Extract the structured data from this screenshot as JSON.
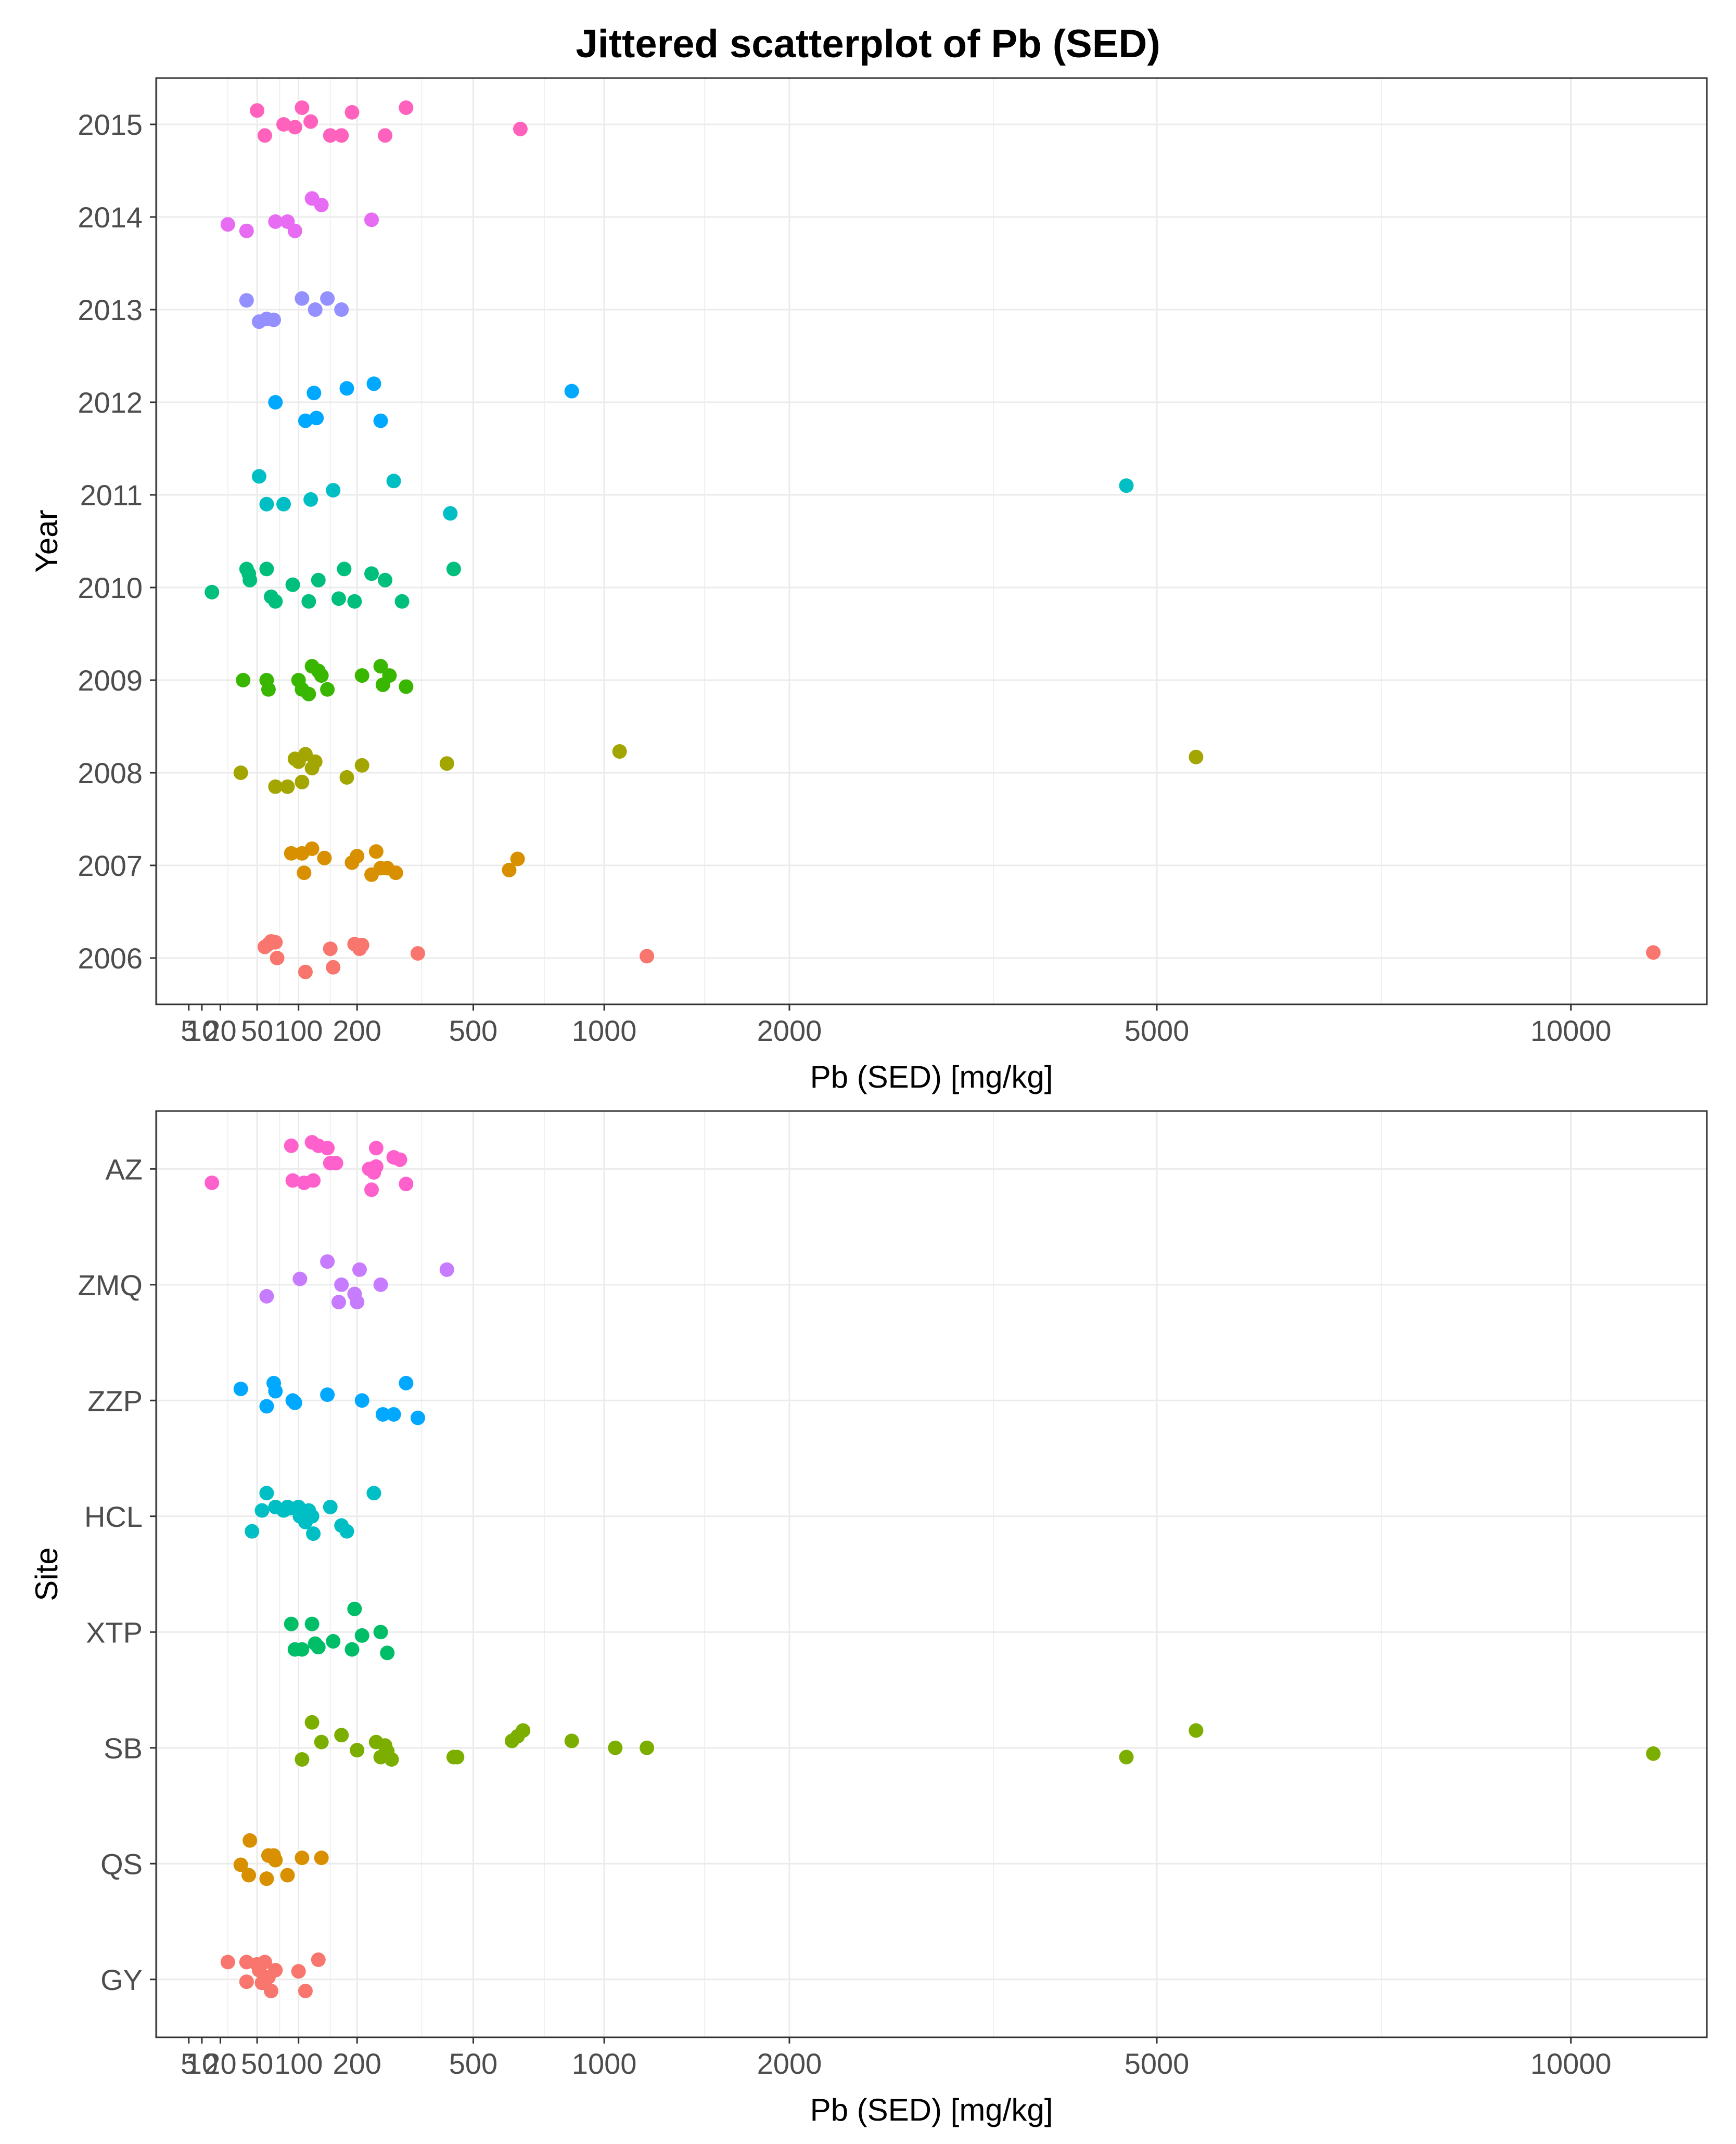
{
  "figure": {
    "title": "Jittered scatterplot of Pb (SED)"
  },
  "chart_data": [
    {
      "type": "scatter",
      "title": "Jittered scatterplot of Pb (SED)",
      "xlabel": "Pb (SED) [mg/kg]",
      "ylabel": "Year",
      "x_scale": "sqrt",
      "xlim": [
        0,
        12000
      ],
      "x_ticks": [
        5,
        10,
        20,
        50,
        100,
        200,
        500,
        1000,
        2000,
        5000,
        10000
      ],
      "x_tick_labels": [
        "5",
        "10",
        "20",
        "50",
        "100",
        "200",
        "500",
        "1000",
        "2000",
        "5000",
        "10000"
      ],
      "x_major_gridlines": [
        0,
        50,
        100,
        200,
        500,
        1000,
        2000,
        5000,
        10000
      ],
      "x_minor_gridlines": [
        25,
        75,
        150,
        350,
        750,
        1500,
        3500,
        7500
      ],
      "categories": [
        "2006",
        "2007",
        "2008",
        "2009",
        "2010",
        "2011",
        "2012",
        "2013",
        "2014",
        "2015"
      ],
      "series": [
        {
          "name": "2006",
          "color": "#F8766D",
          "points": [
            [
              58,
              0.12
            ],
            [
              62,
              0.15
            ],
            [
              65,
              0.18
            ],
            [
              70,
              0.17
            ],
            [
              72,
              0.0
            ],
            [
              110,
              -0.15
            ],
            [
              150,
              0.1
            ],
            [
              155,
              -0.1
            ],
            [
              195,
              0.15
            ],
            [
              205,
              0.1
            ],
            [
              210,
              0.14
            ],
            [
              340,
              0.05
            ],
            [
              1200,
              0.02
            ],
            [
              11200,
              0.06
            ]
          ]
        },
        {
          "name": "2007",
          "color": "#D89000",
          "points": [
            [
              90,
              0.13
            ],
            [
              105,
              0.13
            ],
            [
              108,
              -0.08
            ],
            [
              120,
              0.18
            ],
            [
              140,
              0.08
            ],
            [
              190,
              0.03
            ],
            [
              200,
              0.1
            ],
            [
              230,
              -0.1
            ],
            [
              240,
              0.15
            ],
            [
              250,
              -0.03
            ],
            [
              265,
              -0.03
            ],
            [
              285,
              -0.08
            ],
            [
              620,
              -0.05
            ],
            [
              650,
              0.07
            ]
          ]
        },
        {
          "name": "2008",
          "color": "#A3A500",
          "points": [
            [
              35,
              0.0
            ],
            [
              70,
              -0.15
            ],
            [
              85,
              -0.15
            ],
            [
              95,
              0.15
            ],
            [
              100,
              0.12
            ],
            [
              105,
              -0.1
            ],
            [
              110,
              0.2
            ],
            [
              120,
              0.05
            ],
            [
              125,
              0.12
            ],
            [
              180,
              -0.05
            ],
            [
              210,
              0.08
            ],
            [
              420,
              0.1
            ],
            [
              1070,
              0.23
            ],
            [
              5400,
              0.17
            ]
          ]
        },
        {
          "name": "2009",
          "color": "#39B600",
          "points": [
            [
              37,
              0.0
            ],
            [
              60,
              0.0
            ],
            [
              62,
              -0.1
            ],
            [
              100,
              0.0
            ],
            [
              105,
              -0.1
            ],
            [
              115,
              -0.15
            ],
            [
              120,
              0.15
            ],
            [
              130,
              0.1
            ],
            [
              135,
              0.05
            ],
            [
              145,
              -0.1
            ],
            [
              210,
              0.05
            ],
            [
              250,
              0.15
            ],
            [
              255,
              -0.05
            ],
            [
              270,
              0.05
            ],
            [
              310,
              -0.07
            ]
          ]
        },
        {
          "name": "2010",
          "color": "#00BF7D",
          "points": [
            [
              15,
              -0.05
            ],
            [
              40,
              0.2
            ],
            [
              42,
              0.15
            ],
            [
              43,
              0.08
            ],
            [
              60,
              0.2
            ],
            [
              65,
              -0.1
            ],
            [
              70,
              -0.15
            ],
            [
              92,
              0.03
            ],
            [
              115,
              -0.15
            ],
            [
              130,
              0.08
            ],
            [
              165,
              -0.12
            ],
            [
              175,
              0.2
            ],
            [
              195,
              -0.15
            ],
            [
              230,
              0.15
            ],
            [
              260,
              0.08
            ],
            [
              300,
              -0.15
            ],
            [
              440,
              0.2
            ]
          ]
        },
        {
          "name": "2011",
          "color": "#00BFC4",
          "points": [
            [
              52,
              0.2
            ],
            [
              60,
              -0.1
            ],
            [
              80,
              -0.1
            ],
            [
              118,
              -0.05
            ],
            [
              155,
              0.05
            ],
            [
              280,
              0.15
            ],
            [
              430,
              -0.2
            ],
            [
              4700,
              0.1
            ]
          ]
        },
        {
          "name": "2012",
          "color": "#00A9FF",
          "points": [
            [
              70,
              0.0
            ],
            [
              110,
              -0.2
            ],
            [
              123,
              0.1
            ],
            [
              127,
              -0.17
            ],
            [
              180,
              0.15
            ],
            [
              235,
              0.2
            ],
            [
              250,
              -0.2
            ],
            [
              860,
              0.12
            ]
          ]
        },
        {
          "name": "2013",
          "color": "#9590FF",
          "points": [
            [
              40,
              0.1
            ],
            [
              52,
              -0.13
            ],
            [
              60,
              -0.1
            ],
            [
              68,
              -0.11
            ],
            [
              105,
              0.12
            ],
            [
              125,
              0.0
            ],
            [
              145,
              0.12
            ],
            [
              170,
              0.0
            ]
          ]
        },
        {
          "name": "2014",
          "color": "#E76BF3",
          "points": [
            [
              25,
              -0.08
            ],
            [
              40,
              -0.15
            ],
            [
              70,
              -0.05
            ],
            [
              85,
              -0.05
            ],
            [
              95,
              -0.15
            ],
            [
              120,
              0.2
            ],
            [
              135,
              0.13
            ],
            [
              230,
              -0.03
            ]
          ]
        },
        {
          "name": "2015",
          "color": "#FF62BC",
          "points": [
            [
              50,
              0.15
            ],
            [
              58,
              -0.12
            ],
            [
              80,
              0.0
            ],
            [
              95,
              -0.03
            ],
            [
              105,
              0.18
            ],
            [
              118,
              0.03
            ],
            [
              150,
              -0.12
            ],
            [
              170,
              -0.12
            ],
            [
              190,
              0.13
            ],
            [
              260,
              -0.12
            ],
            [
              310,
              0.18
            ],
            [
              660,
              -0.05
            ]
          ]
        }
      ]
    },
    {
      "type": "scatter",
      "xlabel": "Pb (SED) [mg/kg]",
      "ylabel": "Site",
      "x_scale": "sqrt",
      "xlim": [
        0,
        12000
      ],
      "x_ticks": [
        5,
        10,
        20,
        50,
        100,
        200,
        500,
        1000,
        2000,
        5000,
        10000
      ],
      "x_tick_labels": [
        "5",
        "10",
        "20",
        "50",
        "100",
        "200",
        "500",
        "1000",
        "2000",
        "5000",
        "10000"
      ],
      "x_major_gridlines": [
        0,
        50,
        100,
        200,
        500,
        1000,
        2000,
        5000,
        10000
      ],
      "x_minor_gridlines": [
        25,
        75,
        150,
        350,
        750,
        1500,
        3500,
        7500
      ],
      "categories": [
        "GY",
        "QS",
        "SB",
        "XTP",
        "HCL",
        "ZZP",
        "ZMQ",
        "AZ"
      ],
      "series": [
        {
          "name": "GY",
          "color": "#F8766D",
          "points": [
            [
              25,
              0.15
            ],
            [
              40,
              0.15
            ],
            [
              40,
              -0.02
            ],
            [
              50,
              0.13
            ],
            [
              52,
              0.08
            ],
            [
              55,
              -0.03
            ],
            [
              58,
              0.15
            ],
            [
              62,
              0.02
            ],
            [
              65,
              -0.1
            ],
            [
              70,
              0.08
            ],
            [
              100,
              0.07
            ],
            [
              110,
              -0.1
            ],
            [
              130,
              0.17
            ]
          ]
        },
        {
          "name": "QS",
          "color": "#D89000",
          "points": [
            [
              35,
              -0.01
            ],
            [
              42,
              -0.1
            ],
            [
              43,
              0.2
            ],
            [
              60,
              -0.13
            ],
            [
              62,
              0.07
            ],
            [
              68,
              0.07
            ],
            [
              70,
              0.03
            ],
            [
              85,
              -0.1
            ],
            [
              105,
              0.05
            ],
            [
              135,
              0.05
            ]
          ]
        },
        {
          "name": "SB",
          "color": "#7CAE00",
          "points": [
            [
              105,
              -0.1
            ],
            [
              120,
              0.22
            ],
            [
              135,
              0.05
            ],
            [
              170,
              0.11
            ],
            [
              200,
              -0.02
            ],
            [
              240,
              0.05
            ],
            [
              250,
              -0.08
            ],
            [
              260,
              0.02
            ],
            [
              265,
              -0.03
            ],
            [
              275,
              -0.1
            ],
            [
              440,
              -0.08
            ],
            [
              450,
              -0.08
            ],
            [
              630,
              0.06
            ],
            [
              650,
              0.1
            ],
            [
              670,
              0.15
            ],
            [
              860,
              0.06
            ],
            [
              1050,
              0.0
            ],
            [
              1200,
              0.0
            ],
            [
              4700,
              -0.08
            ],
            [
              5400,
              0.15
            ],
            [
              11200,
              -0.05
            ]
          ]
        },
        {
          "name": "XTP",
          "color": "#00BE67",
          "points": [
            [
              90,
              0.07
            ],
            [
              95,
              -0.15
            ],
            [
              105,
              -0.15
            ],
            [
              120,
              0.07
            ],
            [
              125,
              -0.1
            ],
            [
              130,
              -0.13
            ],
            [
              155,
              -0.08
            ],
            [
              190,
              -0.15
            ],
            [
              195,
              0.2
            ],
            [
              210,
              -0.03
            ],
            [
              250,
              0.0
            ],
            [
              265,
              -0.18
            ]
          ]
        },
        {
          "name": "HCL",
          "color": "#00BFC4",
          "points": [
            [
              45,
              -0.13
            ],
            [
              55,
              0.05
            ],
            [
              60,
              0.2
            ],
            [
              70,
              0.08
            ],
            [
              80,
              0.05
            ],
            [
              85,
              0.08
            ],
            [
              88,
              0.07
            ],
            [
              100,
              0.08
            ],
            [
              102,
              0.0
            ],
            [
              110,
              -0.05
            ],
            [
              115,
              0.05
            ],
            [
              120,
              0.0
            ],
            [
              122,
              -0.15
            ],
            [
              150,
              0.08
            ],
            [
              170,
              -0.08
            ],
            [
              180,
              -0.13
            ],
            [
              235,
              0.2
            ]
          ]
        },
        {
          "name": "ZZP",
          "color": "#00A9FF",
          "points": [
            [
              35,
              0.1
            ],
            [
              60,
              -0.05
            ],
            [
              68,
              0.15
            ],
            [
              70,
              0.08
            ],
            [
              92,
              0.0
            ],
            [
              95,
              -0.02
            ],
            [
              145,
              0.05
            ],
            [
              210,
              0.0
            ],
            [
              255,
              -0.12
            ],
            [
              280,
              -0.12
            ],
            [
              310,
              0.15
            ],
            [
              340,
              -0.15
            ]
          ]
        },
        {
          "name": "ZMQ",
          "color": "#C77CFF",
          "points": [
            [
              60,
              -0.1
            ],
            [
              102,
              0.05
            ],
            [
              145,
              0.2
            ],
            [
              165,
              -0.15
            ],
            [
              170,
              0.0
            ],
            [
              195,
              -0.08
            ],
            [
              200,
              -0.15
            ],
            [
              205,
              0.13
            ],
            [
              250,
              0.0
            ],
            [
              420,
              0.13
            ]
          ]
        },
        {
          "name": "AZ",
          "color": "#FF61CC",
          "points": [
            [
              15,
              -0.12
            ],
            [
              90,
              0.2
            ],
            [
              92,
              -0.1
            ],
            [
              108,
              -0.12
            ],
            [
              120,
              0.23
            ],
            [
              122,
              -0.1
            ],
            [
              130,
              0.2
            ],
            [
              145,
              0.18
            ],
            [
              150,
              0.05
            ],
            [
              160,
              0.05
            ],
            [
              225,
              0.0
            ],
            [
              230,
              -0.18
            ],
            [
              235,
              -0.03
            ],
            [
              240,
              0.02
            ],
            [
              240,
              0.18
            ],
            [
              280,
              0.1
            ],
            [
              295,
              0.08
            ],
            [
              310,
              -0.13
            ]
          ]
        }
      ]
    }
  ]
}
